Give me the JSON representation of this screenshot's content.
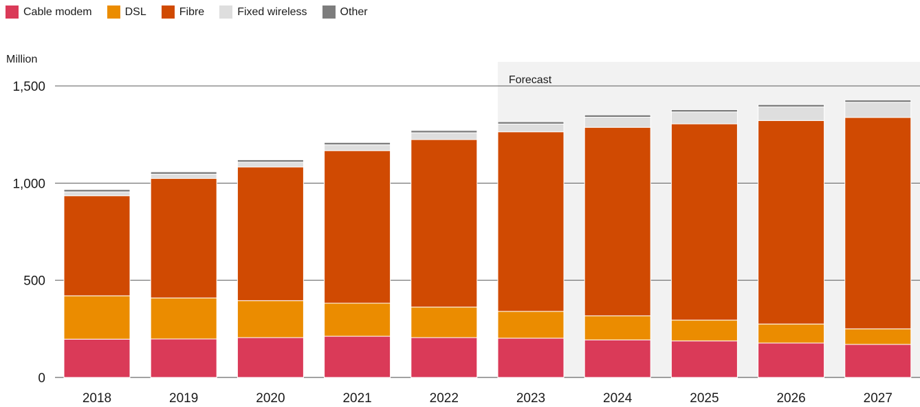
{
  "chart_data": {
    "type": "bar",
    "stacked": true,
    "ylabel": "Million",
    "ylim": [
      0,
      1500
    ],
    "yticks": [
      0,
      500,
      1000,
      1500
    ],
    "ytick_labels": [
      "0",
      "500",
      "1,000",
      "1,500"
    ],
    "grid": true,
    "legend_position": "top-left",
    "forecast_label": "Forecast",
    "forecast_start": "2023",
    "forecast_color": "#f2f2f2",
    "categories": [
      "2018",
      "2019",
      "2020",
      "2021",
      "2022",
      "2023",
      "2024",
      "2025",
      "2026",
      "2027"
    ],
    "series": [
      {
        "name": "Cable modem",
        "color": "#da3a58",
        "values": [
          197,
          198,
          205,
          212,
          205,
          202,
          193,
          188,
          177,
          170
        ]
      },
      {
        "name": "DSL",
        "color": "#eb8c00",
        "values": [
          223,
          211,
          190,
          170,
          157,
          138,
          124,
          107,
          98,
          80
        ]
      },
      {
        "name": "Fibre",
        "color": "#d04a02",
        "values": [
          515,
          615,
          688,
          785,
          862,
          924,
          970,
          1010,
          1047,
          1088
        ]
      },
      {
        "name": "Fixed wireless",
        "color": "#dedede",
        "values": [
          20,
          22,
          25,
          30,
          35,
          40,
          52,
          61,
          70,
          78
        ]
      },
      {
        "name": "Other",
        "color": "#7d7d7d",
        "values": [
          12,
          12,
          12,
          12,
          12,
          12,
          12,
          12,
          12,
          12
        ]
      }
    ]
  }
}
